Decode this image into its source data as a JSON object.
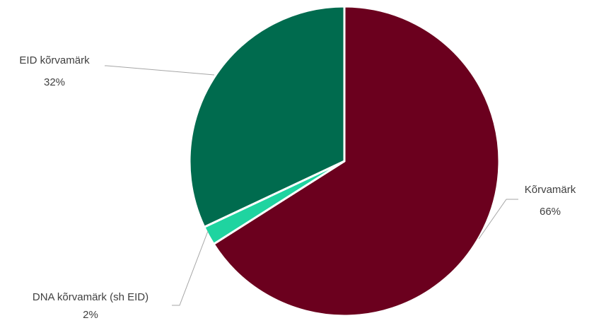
{
  "chart_data": {
    "type": "pie",
    "title": "",
    "slices": [
      {
        "name": "Kõrvamärk",
        "value": 66,
        "label": "66%",
        "color": "#6b001e"
      },
      {
        "name": "DNA kõrvamärk (sh EID)",
        "value": 2,
        "label": "2%",
        "color": "#1fd4a0"
      },
      {
        "name": "EID kõrvamärk",
        "value": 32,
        "label": "32%",
        "color": "#006b4e"
      }
    ],
    "start_angle_deg": 0,
    "direction": "clockwise",
    "legend": "none",
    "data_labels": "outside with leader lines"
  }
}
